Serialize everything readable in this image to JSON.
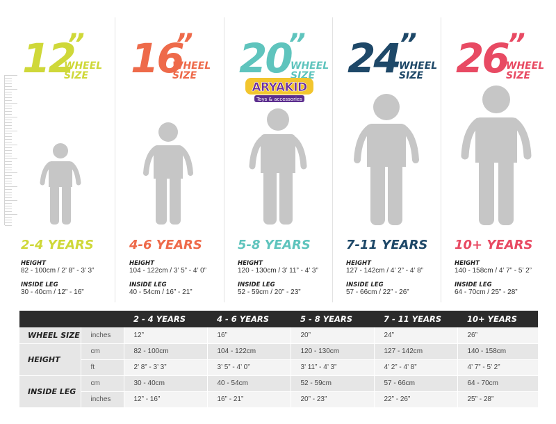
{
  "wheel_word": "WHEEL",
  "size_word": "SIZE",
  "height_label": "HEIGHT",
  "leg_label": "INSIDE LEG",
  "logo": {
    "text": "ARYAKID",
    "tagline": "Toys & accessories"
  },
  "columns": [
    {
      "number": "12",
      "quote": "”",
      "color": "#cfd839",
      "age": "2-4 YEARS",
      "height": "82 - 100cm / 2’ 8” - 3’ 3”",
      "leg": "30 - 40cm / 12” - 16”"
    },
    {
      "number": "16",
      "quote": "”",
      "color": "#ee6a4a",
      "age": "4-6 YEARS",
      "height": "104 - 122cm / 3’ 5” - 4’ 0”",
      "leg": "40 - 54cm / 16” - 21”"
    },
    {
      "number": "20",
      "quote": "”",
      "color": "#5fc4bd",
      "age": "5-8 YEARS",
      "height": "120 - 130cm / 3’ 11” - 4’ 3”",
      "leg": "52 - 59cm / 20” - 23”"
    },
    {
      "number": "24",
      "quote": "”",
      "color": "#1e4868",
      "age": "7-11 YEARS",
      "height": "127 - 142cm / 4’ 2” - 4’ 8”",
      "leg": "57 - 66cm / 22” - 26”"
    },
    {
      "number": "26",
      "quote": "”",
      "color": "#e84a63",
      "age": "10+ YEARS",
      "height": "140 - 158cm / 4’ 7” - 5’ 2”",
      "leg": "64 - 70cm / 25” - 28”"
    }
  ],
  "table": {
    "headers": [
      "2 - 4 YEARS",
      "4 - 6 YEARS",
      "5 - 8 YEARS",
      "7 - 11 YEARS",
      "10+ YEARS"
    ],
    "row_labels": {
      "wheel": "WHEEL SIZE",
      "height": "HEIGHT",
      "leg": "INSIDE LEG"
    },
    "units": {
      "inches": "inches",
      "cm": "cm",
      "ft": "ft"
    },
    "wheel_inches": [
      "12”",
      "16”",
      "20”",
      "24”",
      "26”"
    ],
    "height_cm": [
      "82 - 100cm",
      "104 - 122cm",
      "120 - 130cm",
      "127 - 142cm",
      "140 - 158cm"
    ],
    "height_ft": [
      "2’ 8” - 3’ 3”",
      "3’ 5” - 4’ 0”",
      "3’ 11” - 4’ 3”",
      "4’ 2” - 4’ 8”",
      "4’ 7” - 5’ 2”"
    ],
    "leg_cm": [
      "30 - 40cm",
      "40 - 54cm",
      "52 - 59cm",
      "57 - 66cm",
      "64 - 70cm"
    ],
    "leg_inches": [
      "12” - 16”",
      "16” - 21”",
      "20” - 23”",
      "22” - 26”",
      "25” - 28”"
    ]
  }
}
